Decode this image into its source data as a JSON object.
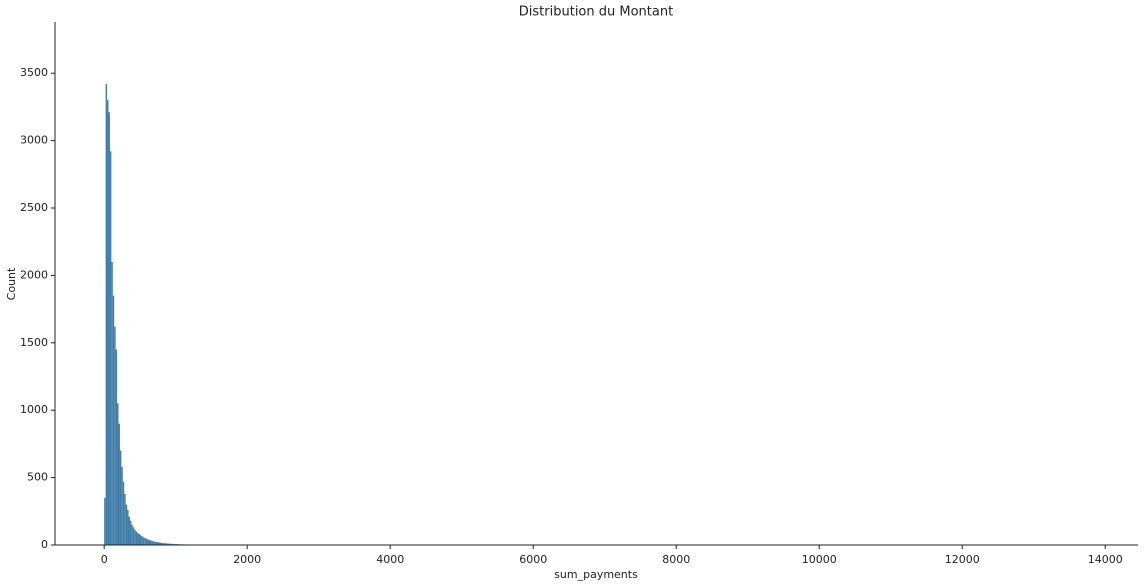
{
  "chart_data": {
    "type": "histogram",
    "title": "Distribution du Montant",
    "x_label": "sum_payments",
    "y_label": "Count",
    "bins": [
      0,
      20,
      40,
      60,
      80,
      100,
      120,
      140,
      160,
      180,
      200,
      220,
      240,
      260,
      280,
      300,
      320,
      340,
      360,
      380,
      400,
      420,
      440,
      460,
      480,
      500,
      520,
      540,
      560,
      580,
      600,
      620,
      640,
      660,
      680,
      700,
      720,
      740,
      760,
      780,
      800,
      820,
      840,
      860,
      880,
      900,
      920,
      940,
      960,
      980,
      1000,
      1020,
      1040,
      1060,
      1080,
      1100,
      1120,
      1140,
      1160,
      1180,
      1200,
      1220,
      1240,
      1260,
      1280,
      1300,
      1320,
      1340,
      1360,
      1380,
      1400,
      1420,
      1440,
      1460,
      1480,
      1500,
      1520,
      1540,
      1560,
      1580,
      1600,
      1620,
      1640,
      1660,
      1680,
      1700,
      1720,
      1740,
      1760,
      1780,
      1800,
      1820,
      1840,
      1860,
      1880,
      1900,
      1920,
      1940,
      1960,
      1980,
      2000,
      2020,
      2040,
      2060,
      2080,
      2100,
      2120,
      2140,
      2160,
      2180,
      2200,
      13664
    ],
    "values": [
      350,
      3420,
      3300,
      3210,
      2920,
      2100,
      1850,
      1620,
      1450,
      1050,
      900,
      700,
      580,
      470,
      380,
      300,
      260,
      210,
      180,
      150,
      130,
      115,
      100,
      90,
      80,
      72,
      65,
      58,
      52,
      47,
      42,
      38,
      34,
      31,
      28,
      25,
      23,
      21,
      19,
      17,
      15,
      14,
      13,
      12,
      11,
      10,
      9,
      9,
      8,
      7,
      7,
      6,
      6,
      5,
      5,
      5,
      4,
      4,
      4,
      3,
      3,
      3,
      3,
      2,
      2,
      2,
      2,
      2,
      2,
      1,
      1,
      1,
      1,
      1,
      1,
      1,
      1,
      1,
      1,
      1,
      3,
      1,
      1,
      0,
      1,
      0,
      1,
      0,
      0,
      1,
      0,
      1,
      0,
      1,
      0,
      0,
      1,
      0,
      0,
      0,
      0,
      0,
      0,
      0,
      0,
      0,
      1,
      3,
      1,
      0,
      2
    ],
    "color": "#3f7ca8",
    "xlim": [
      -688,
      14458
    ],
    "xticks": [
      0,
      2000,
      4000,
      6000,
      8000,
      10000,
      12000,
      14000
    ],
    "ylim": [
      0,
      3880
    ],
    "yticks": [
      0,
      500,
      1000,
      1500,
      2000,
      2500,
      3000,
      3500
    ],
    "grid": false
  }
}
